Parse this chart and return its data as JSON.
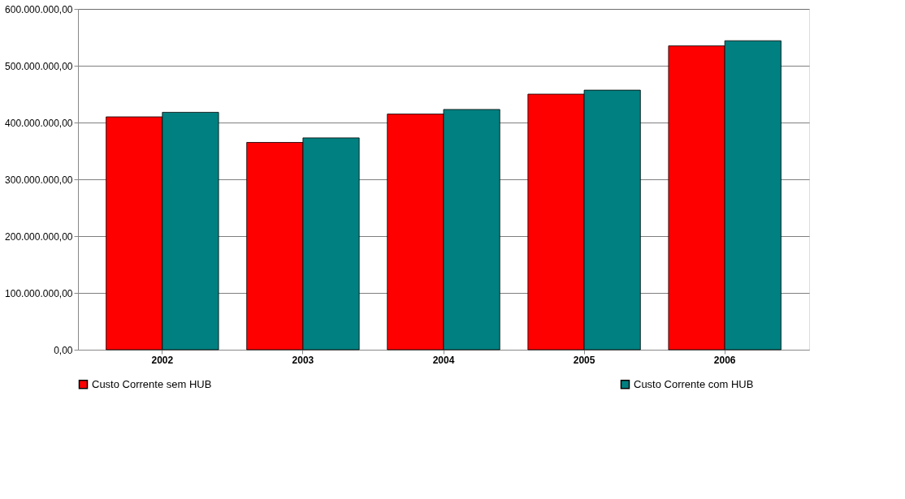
{
  "chart_data": {
    "type": "bar",
    "categories": [
      "2002",
      "2003",
      "2004",
      "2005",
      "2006"
    ],
    "series": [
      {
        "name": "Custo Corrente sem HUB",
        "color": "#ff0000",
        "values": [
          410000000,
          365000000,
          415000000,
          450000000,
          535000000
        ]
      },
      {
        "name": "Custo Corrente com HUB",
        "color": "#008080",
        "values": [
          418000000,
          373000000,
          423000000,
          457000000,
          544000000
        ]
      }
    ],
    "ylim": [
      0,
      600000000
    ],
    "yticks": [
      {
        "value": 0,
        "label": "0,00"
      },
      {
        "value": 100000000,
        "label": "100.000.000,00"
      },
      {
        "value": 200000000,
        "label": "200.000.000,00"
      },
      {
        "value": 300000000,
        "label": "300.000.000,00"
      },
      {
        "value": 400000000,
        "label": "400.000.000,00"
      },
      {
        "value": 500000000,
        "label": "500.000.000,00"
      },
      {
        "value": 600000000,
        "label": "600.000.000,00"
      }
    ],
    "grid": "y",
    "legend": "bottom"
  }
}
